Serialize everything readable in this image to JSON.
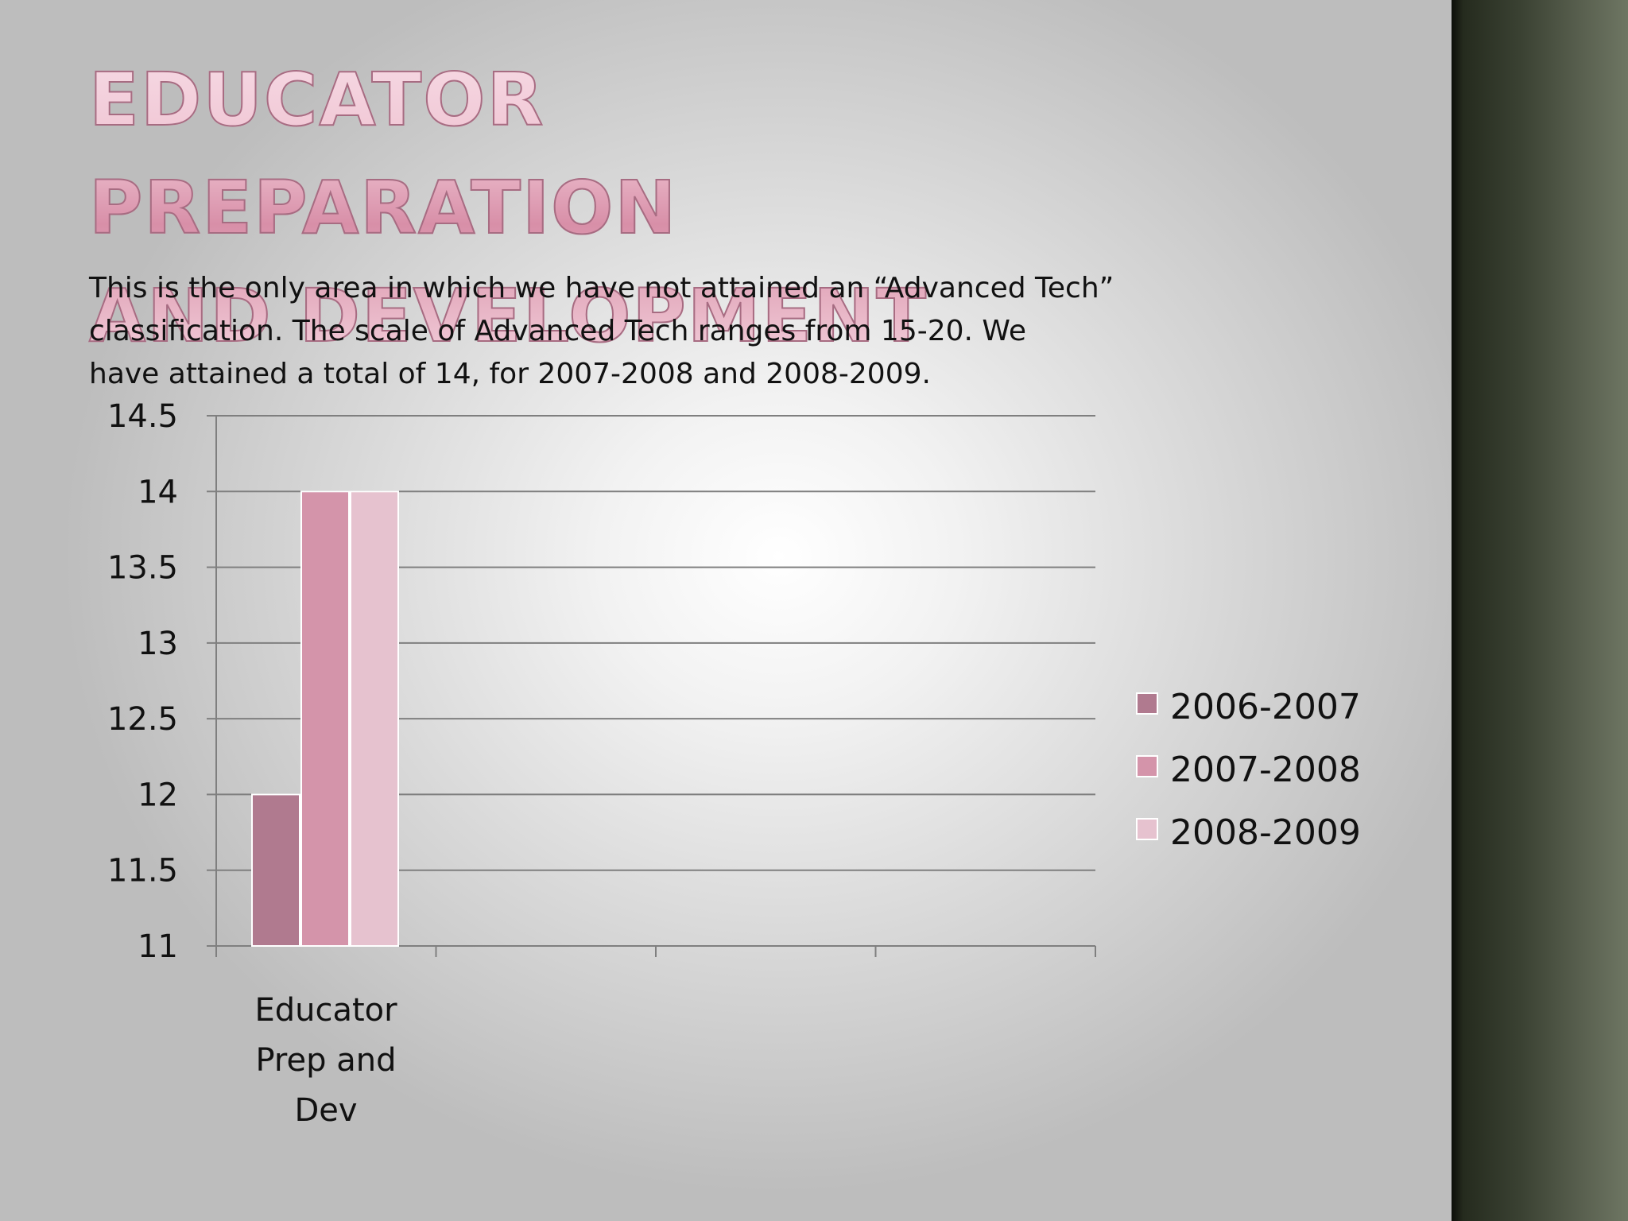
{
  "slide": {
    "title_line1": "EDUCATOR PREPARATION",
    "title_line2": "AND DEVELOPMENT",
    "body_line1": "This is the only area in which we have not attained an “Advanced Tech”",
    "body_line2": "classification.  The scale of Advanced Tech ranges from 15-20.  We",
    "body_line3": "have attained a total of 14, for 2007-2008 and 2008-2009."
  },
  "colors": {
    "series_2006_2007": "#b07a8f",
    "series_2007_2008": "#d494aa",
    "series_2008_2009": "#e6c2cf",
    "gridline": "#7f7f7f"
  },
  "chart_data": {
    "type": "bar",
    "title": "",
    "xlabel": "",
    "ylabel": "",
    "ylim": [
      11,
      14.5
    ],
    "yticks": [
      "14.5",
      "14",
      "13.5",
      "13",
      "12.5",
      "12",
      "11.5",
      "11"
    ],
    "categories": [
      "Educator Prep and Dev"
    ],
    "category_label_lines": [
      "Educator",
      "Prep and",
      "Dev"
    ],
    "series": [
      {
        "name": "2006-2007",
        "values": [
          12
        ]
      },
      {
        "name": "2007-2008",
        "values": [
          14
        ]
      },
      {
        "name": "2008-2009",
        "values": [
          14
        ]
      }
    ],
    "grid": true,
    "legend_position": "right"
  }
}
